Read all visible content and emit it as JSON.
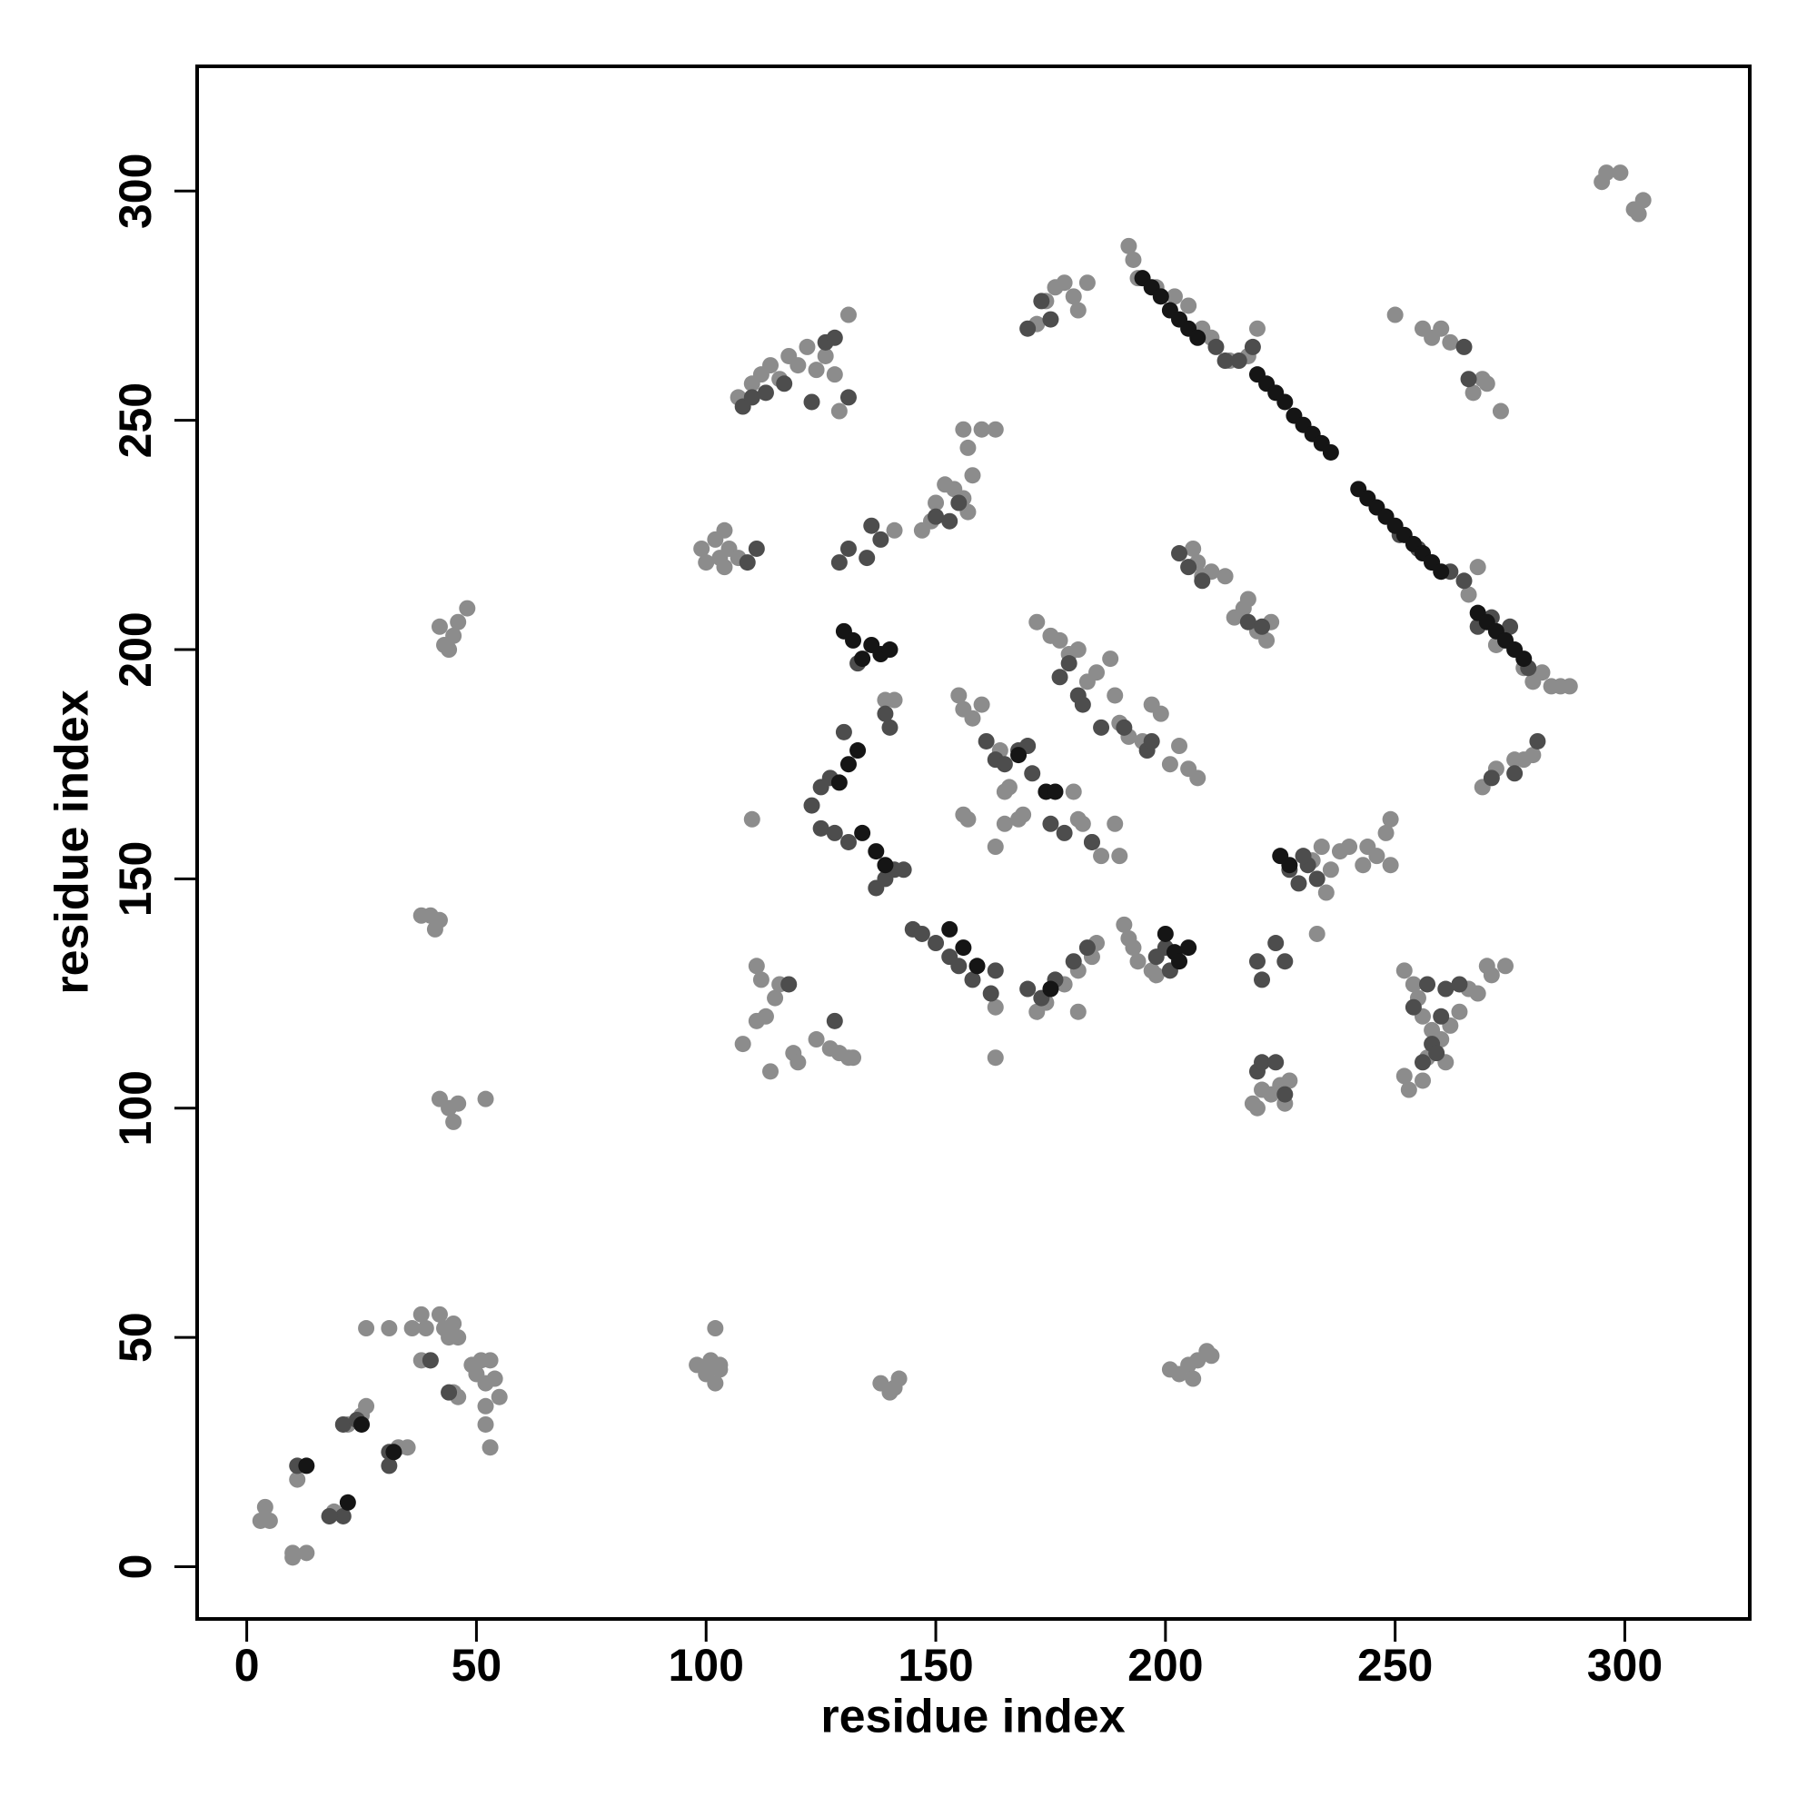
{
  "chart_data": {
    "type": "scatter",
    "x_label": "residue index",
    "y_label": "residue index",
    "xlim": [
      -10.8,
      327.2
    ],
    "ylim": [
      -11.4,
      327.2
    ],
    "xticks": [
      0,
      50,
      100,
      150,
      200,
      250,
      300
    ],
    "yticks": [
      0,
      50,
      100,
      150,
      200,
      250,
      300
    ],
    "grid": false,
    "series": [
      {
        "color": "#8c8c8c",
        "x": [
          3,
          4,
          5,
          10,
          10,
          13,
          11,
          18,
          19,
          22,
          25,
          26,
          26,
          31,
          33,
          35,
          36,
          38,
          39,
          38,
          40,
          42,
          43,
          44,
          45,
          46,
          45,
          46,
          49,
          50,
          51,
          52,
          53,
          54,
          55,
          52,
          52,
          53,
          52,
          42,
          44,
          45,
          46,
          38,
          40,
          41,
          42,
          42,
          43,
          44,
          45,
          46,
          48,
          98,
          100,
          101,
          102,
          103,
          102,
          103,
          138,
          140,
          142,
          141,
          201,
          203,
          205,
          206,
          207,
          209,
          210,
          99,
          100,
          102,
          103,
          104,
          105,
          107,
          104,
          110,
          111,
          111,
          112,
          113,
          114,
          115,
          116,
          108,
          119,
          120,
          124,
          127,
          129,
          131,
          132,
          107,
          110,
          112,
          114,
          116,
          118,
          120,
          122,
          124,
          126,
          128,
          129,
          131,
          150,
          152,
          154,
          156,
          157,
          158,
          157,
          156,
          160,
          163,
          147,
          149,
          155,
          156,
          158,
          160,
          156,
          157,
          163,
          164,
          165,
          166,
          165,
          168,
          169,
          163,
          163,
          141,
          139,
          141,
          172,
          175,
          177,
          179,
          181,
          183,
          185,
          188,
          189,
          190,
          192,
          195,
          197,
          199,
          201,
          203,
          205,
          207,
          180,
          181,
          182,
          184,
          186,
          189,
          190,
          191,
          192,
          193,
          194,
          197,
          198,
          172,
          174,
          178,
          181,
          184,
          185,
          181,
          172,
          174,
          176,
          178,
          180,
          181,
          183,
          192,
          193,
          194,
          198,
          202,
          205,
          208,
          210,
          214,
          218,
          220,
          232,
          234,
          236,
          238,
          240,
          243,
          244,
          246,
          248,
          249,
          249,
          235,
          233,
          206,
          207,
          208,
          210,
          213,
          215,
          217,
          218,
          220,
          223,
          222,
          219,
          221,
          223,
          225,
          226,
          227,
          220,
          252,
          254,
          255,
          256,
          258,
          260,
          262,
          264,
          266,
          268,
          270,
          271,
          274,
          252,
          253,
          256,
          250,
          256,
          258,
          260,
          262,
          267,
          269,
          270,
          273,
          266,
          268,
          272,
          274,
          278,
          280,
          282,
          284,
          286,
          288,
          269,
          272,
          276,
          278,
          280,
          295,
          296,
          299,
          302,
          303,
          304,
          261,
          257
        ],
        "y": [
          10,
          13,
          10,
          3,
          2,
          3,
          19,
          11,
          12,
          31,
          33,
          35,
          52,
          52,
          26,
          26,
          52,
          55,
          52,
          45,
          45,
          55,
          52,
          50,
          53,
          50,
          38,
          37,
          44,
          42,
          45,
          40,
          45,
          41,
          37,
          35,
          31,
          26,
          102,
          102,
          100,
          97,
          101,
          142,
          142,
          139,
          141,
          205,
          201,
          200,
          203,
          206,
          209,
          44,
          42,
          45,
          40,
          43,
          52,
          44,
          40,
          38,
          41,
          39,
          43,
          42,
          44,
          41,
          45,
          47,
          46,
          222,
          219,
          224,
          220,
          226,
          222,
          220,
          218,
          163,
          131,
          119,
          128,
          120,
          108,
          124,
          127,
          114,
          112,
          110,
          115,
          113,
          112,
          111,
          111,
          255,
          258,
          260,
          262,
          259,
          264,
          262,
          266,
          261,
          264,
          260,
          252,
          273,
          232,
          236,
          235,
          233,
          230,
          238,
          244,
          248,
          248,
          248,
          226,
          228,
          190,
          187,
          185,
          188,
          164,
          163,
          157,
          178,
          169,
          170,
          162,
          163,
          164,
          111,
          122,
          226,
          189,
          189,
          206,
          203,
          202,
          199,
          200,
          193,
          195,
          198,
          190,
          184,
          181,
          180,
          188,
          186,
          175,
          179,
          174,
          172,
          169,
          163,
          162,
          158,
          155,
          162,
          155,
          140,
          137,
          135,
          132,
          130,
          129,
          121,
          123,
          127,
          130,
          133,
          136,
          121,
          271,
          276,
          279,
          280,
          277,
          274,
          280,
          288,
          285,
          281,
          279,
          277,
          275,
          270,
          268,
          263,
          264,
          270,
          154,
          157,
          152,
          156,
          157,
          153,
          157,
          155,
          160,
          163,
          153,
          147,
          138,
          222,
          219,
          216,
          217,
          216,
          207,
          209,
          211,
          204,
          206,
          202,
          101,
          104,
          103,
          105,
          101,
          106,
          100,
          130,
          127,
          124,
          120,
          117,
          115,
          118,
          121,
          126,
          125,
          131,
          129,
          131,
          107,
          104,
          106,
          273,
          270,
          268,
          270,
          267,
          256,
          259,
          258,
          252,
          212,
          218,
          201,
          202,
          196,
          193,
          195,
          192,
          192,
          192,
          170,
          174,
          176,
          176,
          177,
          302,
          304,
          304,
          296,
          295,
          298,
          110,
          111
        ]
      },
      {
        "color": "#4d4d4d",
        "x": [
          11,
          21,
          24,
          31,
          31,
          21,
          18,
          40,
          44,
          108,
          110,
          113,
          117,
          126,
          131,
          128,
          123,
          111,
          109,
          118,
          128,
          129,
          131,
          135,
          136,
          138,
          133,
          140,
          139,
          130,
          127,
          125,
          123,
          125,
          128,
          131,
          137,
          139,
          141,
          143,
          145,
          147,
          150,
          153,
          155,
          158,
          162,
          163,
          161,
          163,
          165,
          168,
          170,
          171,
          175,
          178,
          184,
          177,
          179,
          181,
          182,
          186,
          191,
          196,
          197,
          170,
          173,
          176,
          180,
          183,
          173,
          175,
          170,
          150,
          153,
          155,
          198,
          200,
          201,
          220,
          221,
          224,
          226,
          220,
          221,
          224,
          226,
          227,
          229,
          231,
          233,
          230,
          211,
          213,
          216,
          219,
          203,
          205,
          208,
          218,
          221,
          244,
          248,
          251,
          255,
          258,
          262,
          265,
          268,
          271,
          275,
          279,
          281,
          276,
          271,
          254,
          256,
          258,
          260,
          261,
          264,
          266,
          265,
          257,
          259
        ],
        "y": [
          22,
          31,
          32,
          25,
          22,
          11,
          11,
          45,
          38,
          253,
          255,
          256,
          258,
          267,
          255,
          268,
          254,
          222,
          219,
          127,
          119,
          219,
          222,
          220,
          227,
          224,
          197,
          183,
          186,
          182,
          172,
          170,
          166,
          161,
          160,
          158,
          148,
          150,
          152,
          152,
          139,
          138,
          136,
          133,
          131,
          128,
          125,
          130,
          180,
          176,
          175,
          178,
          179,
          173,
          162,
          160,
          158,
          194,
          197,
          190,
          188,
          183,
          183,
          178,
          180,
          126,
          124,
          128,
          132,
          135,
          276,
          272,
          270,
          229,
          228,
          232,
          133,
          135,
          130,
          132,
          128,
          136,
          132,
          108,
          110,
          110,
          103,
          152,
          149,
          153,
          150,
          155,
          266,
          263,
          263,
          266,
          221,
          218,
          215,
          206,
          205,
          233,
          229,
          225,
          222,
          219,
          217,
          215,
          205,
          207,
          205,
          196,
          180,
          173,
          172,
          122,
          110,
          114,
          120,
          126,
          127,
          259,
          266,
          127,
          112
        ]
      },
      {
        "color": "#151515",
        "x": [
          13,
          22,
          25,
          32,
          130,
          132,
          134,
          136,
          138,
          140,
          133,
          131,
          129,
          134,
          137,
          139,
          153,
          156,
          159,
          175,
          168,
          174,
          176,
          200,
          202,
          205,
          203,
          225,
          227,
          195,
          197,
          199,
          201,
          203,
          205,
          207,
          220,
          222,
          224,
          226,
          228,
          230,
          232,
          234,
          236,
          242,
          244,
          246,
          248,
          250,
          252,
          254,
          256,
          258,
          260,
          268,
          270,
          272,
          274,
          276,
          278
        ],
        "y": [
          22,
          14,
          31,
          25,
          204,
          202,
          198,
          201,
          199,
          200,
          178,
          175,
          171,
          160,
          156,
          153,
          139,
          135,
          131,
          126,
          177,
          169,
          169,
          138,
          134,
          135,
          132,
          155,
          153,
          281,
          279,
          277,
          274,
          272,
          270,
          268,
          260,
          258,
          256,
          254,
          251,
          249,
          247,
          245,
          243,
          235,
          233,
          231,
          229,
          227,
          225,
          223,
          221,
          219,
          217,
          208,
          206,
          204,
          202,
          200,
          198
        ]
      }
    ]
  }
}
